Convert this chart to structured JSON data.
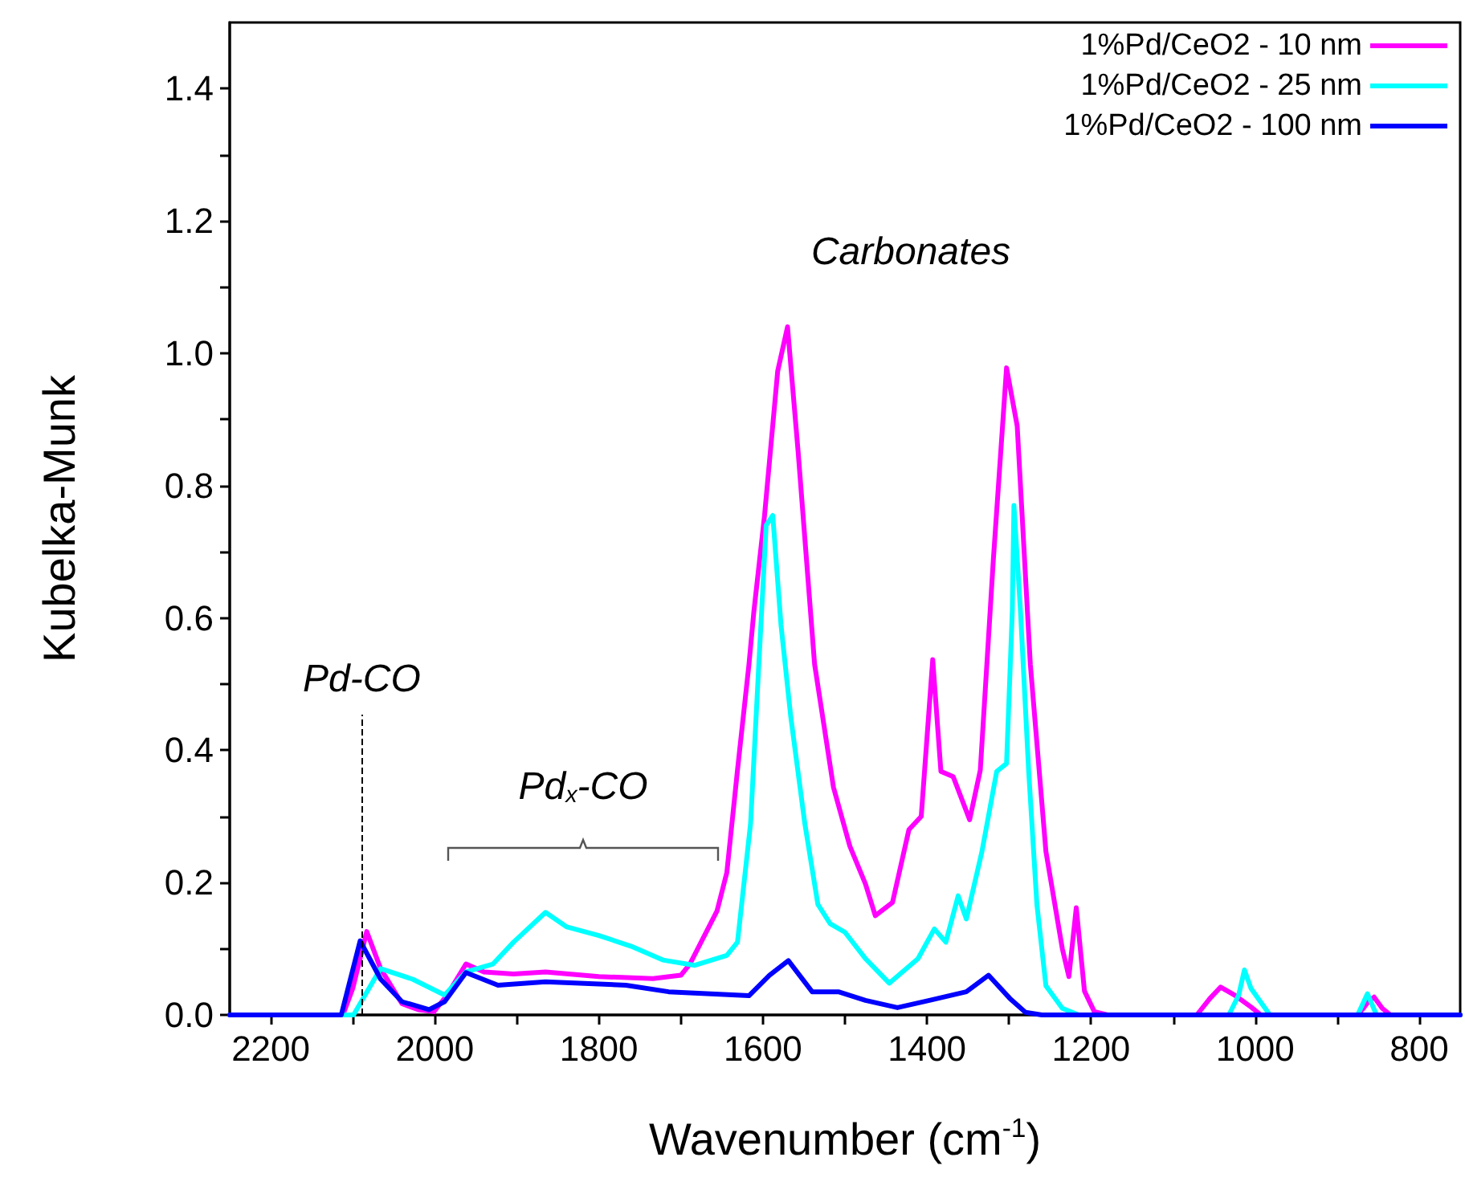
{
  "chart_data": {
    "type": "line",
    "xlabel": "Wavenumber (cm$^{-1}$)",
    "ylabel": "Kubelka-Munk",
    "xlim": [
      2250,
      750
    ],
    "ylim": [
      0,
      1.5
    ],
    "xticks": [
      2200,
      {
        "value": 2100,
        "label": null
      },
      2000,
      {
        "value": 1900,
        "label": null
      },
      1800,
      {
        "value": 1700,
        "label": null
      },
      1600,
      {
        "value": 1500,
        "label": null
      },
      1400,
      {
        "value": 1300,
        "label": null
      },
      1200,
      {
        "value": 1100,
        "label": null
      },
      1000,
      {
        "value": 900,
        "label": null
      },
      800
    ],
    "yticks": [
      {
        "value": 0,
        "label": "0.0"
      },
      {
        "value": 0.1,
        "label": null
      },
      0.2,
      {
        "value": 0.3,
        "label": null
      },
      0.4,
      {
        "value": 0.5,
        "label": null
      },
      0.6,
      {
        "value": 0.7,
        "label": null
      },
      0.8,
      {
        "value": 0.9,
        "label": null
      },
      {
        "value": 1,
        "label": "1.0"
      },
      {
        "value": 1.1,
        "label": null
      },
      1.2,
      {
        "value": 1.3,
        "label": null
      },
      1.4
    ],
    "grid": false,
    "legend": "top right",
    "marker": "none",
    "line_style": "solid",
    "annotations": [
      "Pd$_{x}$-CO",
      "Carbonates"
    ],
    "ref_lines": [
      {
        "axis": "x",
        "value": 2089,
        "label": "Pd-CO",
        "line_style": "dashed",
        "color": "#000000"
      }
    ],
    "series": [
      {
        "name": "1%Pd/CeO2 - 10 nm",
        "color": "#ff00ff",
        "x": [
          2250,
          2112,
          2100,
          2083,
          2066,
          2040,
          2020,
          2001,
          1985,
          1962,
          1940,
          1904,
          1865,
          1800,
          1734,
          1700,
          1689,
          1656,
          1644,
          1631,
          1617,
          1611,
          1598,
          1582,
          1570,
          1557,
          1537,
          1514,
          1494,
          1475,
          1463,
          1442,
          1422,
          1407,
          1393,
          1383,
          1368,
          1348,
          1335,
          1319,
          1303,
          1290,
          1274,
          1255,
          1235,
          1227,
          1218,
          1208,
          1196,
          1180,
          1071,
          1055,
          1042,
          1025,
          1005,
          993,
          875,
          868,
          862,
          855,
          845,
          835,
          750
        ],
        "values": [
          0,
          0,
          0.04,
          0.126,
          0.07,
          0.017,
          0.008,
          0.005,
          0.03,
          0.077,
          0.065,
          0.062,
          0.065,
          0.058,
          0.055,
          0.06,
          0.077,
          0.157,
          0.215,
          0.37,
          0.53,
          0.61,
          0.755,
          0.973,
          1.04,
          0.85,
          0.53,
          0.344,
          0.255,
          0.198,
          0.15,
          0.17,
          0.28,
          0.3,
          0.537,
          0.368,
          0.36,
          0.295,
          0.37,
          0.69,
          0.978,
          0.89,
          0.53,
          0.247,
          0.1,
          0.058,
          0.162,
          0.036,
          0.005,
          0,
          0,
          0.025,
          0.042,
          0.03,
          0.012,
          0,
          0,
          0.01,
          0.02,
          0.027,
          0.01,
          0,
          0
        ]
      },
      {
        "name": "1%Pd/CeO2 - 25 nm",
        "color": "#00ffff",
        "x": [
          2250,
          2099,
          2085,
          2066,
          2027,
          1988,
          1962,
          1929,
          1904,
          1865,
          1839,
          1800,
          1761,
          1722,
          1683,
          1644,
          1631,
          1615,
          1605,
          1596,
          1588,
          1578,
          1566,
          1549,
          1533,
          1518,
          1500,
          1475,
          1446,
          1411,
          1391,
          1377,
          1362,
          1352,
          1333,
          1315,
          1303,
          1296,
          1294,
          1286,
          1276,
          1266,
          1255,
          1235,
          1215,
          1032,
          1020,
          1013,
          1005,
          982,
          875,
          863,
          852,
          750
        ],
        "values": [
          0,
          0,
          0.03,
          0.07,
          0.054,
          0.03,
          0.065,
          0.077,
          0.11,
          0.155,
          0.133,
          0.12,
          0.104,
          0.083,
          0.075,
          0.09,
          0.11,
          0.29,
          0.53,
          0.74,
          0.755,
          0.59,
          0.45,
          0.29,
          0.167,
          0.138,
          0.125,
          0.085,
          0.048,
          0.085,
          0.13,
          0.11,
          0.18,
          0.145,
          0.247,
          0.368,
          0.38,
          0.61,
          0.77,
          0.61,
          0.368,
          0.167,
          0.044,
          0.01,
          0,
          0,
          0.03,
          0.068,
          0.04,
          0,
          0,
          0.032,
          0,
          0
        ]
      },
      {
        "name": "1%Pd/CeO2 - 100 nm",
        "color": "#0000ff",
        "x": [
          2250,
          2114,
          2091,
          2066,
          2040,
          2007,
          1988,
          1962,
          1923,
          1865,
          1767,
          1715,
          1617,
          1592,
          1569,
          1540,
          1508,
          1475,
          1436,
          1397,
          1352,
          1325,
          1299,
          1280,
          1260,
          750
        ],
        "values": [
          0,
          0,
          0.112,
          0.054,
          0.02,
          0.008,
          0.02,
          0.064,
          0.045,
          0.05,
          0.045,
          0.035,
          0.029,
          0.06,
          0.082,
          0.035,
          0.035,
          0.022,
          0.011,
          0.022,
          0.035,
          0.06,
          0.025,
          0.004,
          0,
          0
        ]
      }
    ]
  }
}
